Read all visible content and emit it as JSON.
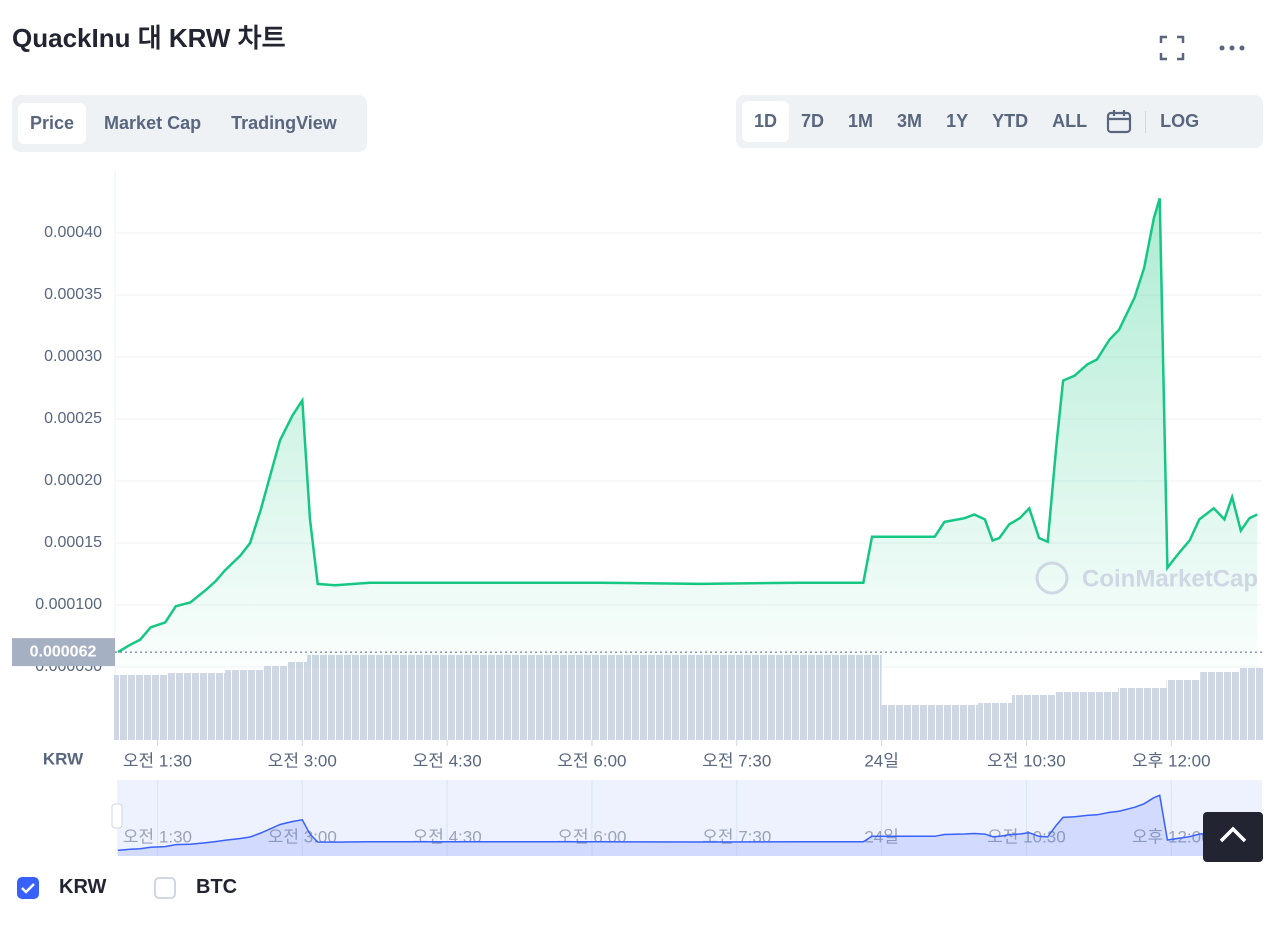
{
  "title": "QuackInu 대 KRW 차트",
  "tabs": [
    "Price",
    "Market Cap",
    "TradingView"
  ],
  "ranges": [
    "1D",
    "7D",
    "1M",
    "3M",
    "1Y",
    "YTD",
    "ALL"
  ],
  "log_button": "LOG",
  "chart_data": {
    "type": "area",
    "color": "#16c784",
    "watermark": "CoinMarketCap",
    "currency_label": "KRW",
    "xlim": [
      1.05,
      12.95
    ],
    "xticks": [
      {
        "value": 1.5,
        "label": "오전 1:30"
      },
      {
        "value": 3,
        "label": "오전 3:00"
      },
      {
        "value": 4.5,
        "label": "오전 4:30"
      },
      {
        "value": 6,
        "label": "오전 6:00"
      },
      {
        "value": 7.5,
        "label": "오전 7:30"
      },
      {
        "value": 9,
        "label": "24일"
      },
      {
        "value": 10.5,
        "label": "오전 10:30"
      },
      {
        "value": 12,
        "label": "오후 12:00"
      }
    ],
    "ylim": [
      5e-05,
      0.00045
    ],
    "yticks": [
      {
        "value": 5e-05,
        "label": "0.000050"
      },
      {
        "value": 0.0001,
        "label": "0.000100"
      },
      {
        "value": 0.00015,
        "label": "0.00015"
      },
      {
        "value": 0.0002,
        "label": "0.00020"
      },
      {
        "value": 0.00025,
        "label": "0.00025"
      },
      {
        "value": 0.0003,
        "label": "0.00030"
      },
      {
        "value": 0.00035,
        "label": "0.00035"
      },
      {
        "value": 0.0004,
        "label": "0.00040"
      }
    ],
    "grid": true,
    "price_marker": {
      "value": 6.2e-05,
      "label": "0.000062"
    },
    "x": [
      1.09,
      1.22,
      1.32,
      1.43,
      1.58,
      1.69,
      1.84,
      2.0,
      2.1,
      2.2,
      2.36,
      2.46,
      2.57,
      2.67,
      2.77,
      2.9,
      3.0,
      3.08,
      3.16,
      3.34,
      3.7,
      4.22,
      5.05,
      6.08,
      7.12,
      8.15,
      8.81,
      8.9,
      9.55,
      9.65,
      9.86,
      9.96,
      10.07,
      10.15,
      10.22,
      10.32,
      10.43,
      10.53,
      10.63,
      10.72,
      10.81,
      10.88,
      11.0,
      11.13,
      11.23,
      11.36,
      11.46,
      11.62,
      11.72,
      11.82,
      11.88,
      11.96,
      12.08,
      12.19,
      12.29,
      12.44,
      12.55,
      12.63,
      12.72,
      12.81,
      12.89
    ],
    "series": [
      {
        "color": "#16c784",
        "values": [
          6.2e-05,
          6.8e-05,
          7.2e-05,
          8.2e-05,
          8.6e-05,
          9.9e-05,
          0.000102,
          0.000112,
          0.000119,
          0.000128,
          0.00014,
          0.00015,
          0.000177,
          0.000205,
          0.000233,
          0.000253,
          0.000265,
          0.000169,
          0.000117,
          0.000116,
          0.000118,
          0.000118,
          0.000118,
          0.000118,
          0.000117,
          0.000118,
          0.000118,
          0.000155,
          0.000155,
          0.000167,
          0.00017,
          0.000173,
          0.000169,
          0.000152,
          0.000154,
          0.000165,
          0.00017,
          0.000178,
          0.000154,
          0.000151,
          0.000229,
          0.000281,
          0.000285,
          0.000294,
          0.000298,
          0.000314,
          0.000322,
          0.000348,
          0.000372,
          0.000412,
          0.000428,
          0.00013,
          0.000142,
          0.000152,
          0.000169,
          0.000178,
          0.000169,
          0.000187,
          0.00016,
          0.00017,
          0.000173
        ]
      }
    ],
    "volume": {
      "color": "#cfd6e4",
      "bins": [
        1.05,
        1.6,
        2.2,
        2.6,
        2.85,
        3.05,
        9.0,
        10.0,
        10.35,
        10.8,
        11.45,
        11.95,
        12.3,
        12.7,
        12.95
      ],
      "values": [
        65,
        67,
        70,
        74,
        78,
        85,
        35,
        37,
        45,
        48,
        52,
        60,
        68,
        72
      ],
      "lim": [
        0,
        100
      ]
    },
    "navigator_color": "#3861fb",
    "legend": [
      {
        "name": "KRW",
        "checked": true
      },
      {
        "name": "BTC",
        "checked": false
      }
    ]
  }
}
